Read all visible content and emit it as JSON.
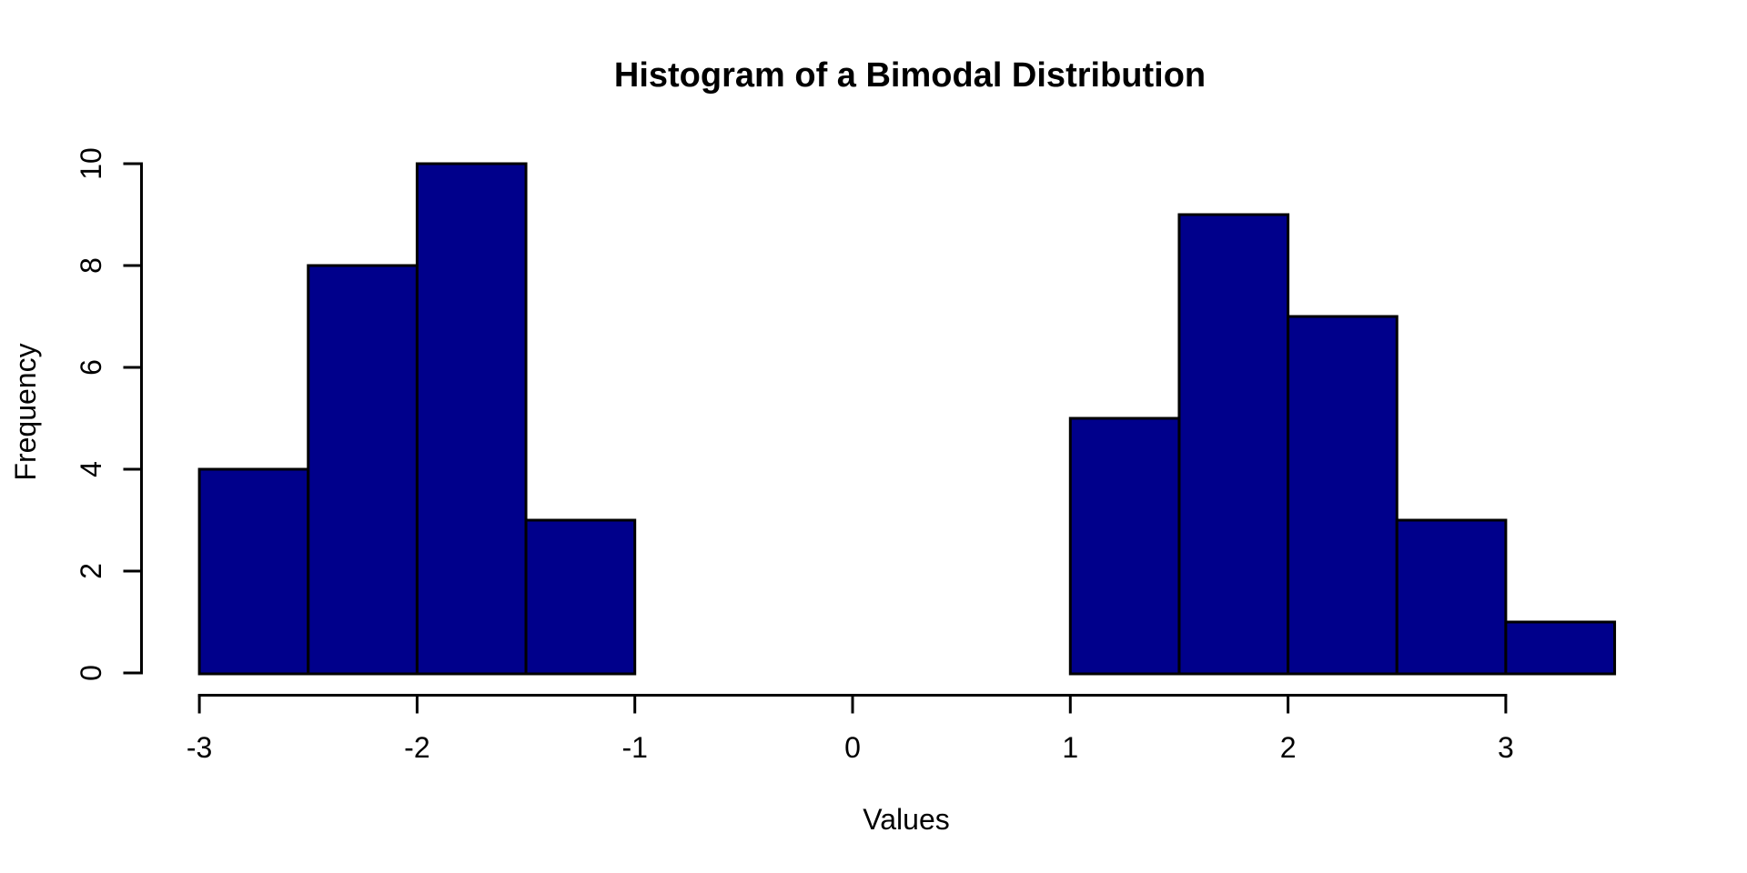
{
  "page": {
    "background": "#ffffff"
  },
  "chart_data": {
    "type": "bar",
    "subtype": "histogram",
    "title": "Histogram of a Bimodal Distribution",
    "xlabel": "Values",
    "ylabel": "Frequency",
    "bar_fill_color": "#00008B",
    "bar_border_color": "#000000",
    "axis_color": "#000000",
    "grid": false,
    "legend": null,
    "xlim": [
      -3,
      3.5
    ],
    "ylim": [
      0,
      10
    ],
    "x_ticks": [
      "-3",
      "-2",
      "-1",
      "0",
      "1",
      "2",
      "3"
    ],
    "x_tick_values": [
      -3,
      -2,
      -1,
      0,
      1,
      2,
      3
    ],
    "y_ticks": [
      "0",
      "2",
      "4",
      "6",
      "8",
      "10"
    ],
    "y_tick_values": [
      0,
      2,
      4,
      6,
      8,
      10
    ],
    "bins": [
      {
        "x0": -3.0,
        "x1": -2.5,
        "count": 4
      },
      {
        "x0": -2.5,
        "x1": -2.0,
        "count": 8
      },
      {
        "x0": -2.0,
        "x1": -1.5,
        "count": 10
      },
      {
        "x0": -1.5,
        "x1": -1.0,
        "count": 3
      },
      {
        "x0": 1.0,
        "x1": 1.5,
        "count": 5
      },
      {
        "x0": 1.5,
        "x1": 2.0,
        "count": 9
      },
      {
        "x0": 2.0,
        "x1": 2.5,
        "count": 7
      },
      {
        "x0": 2.5,
        "x1": 3.0,
        "count": 3
      },
      {
        "x0": 3.0,
        "x1": 3.5,
        "count": 1
      }
    ]
  }
}
